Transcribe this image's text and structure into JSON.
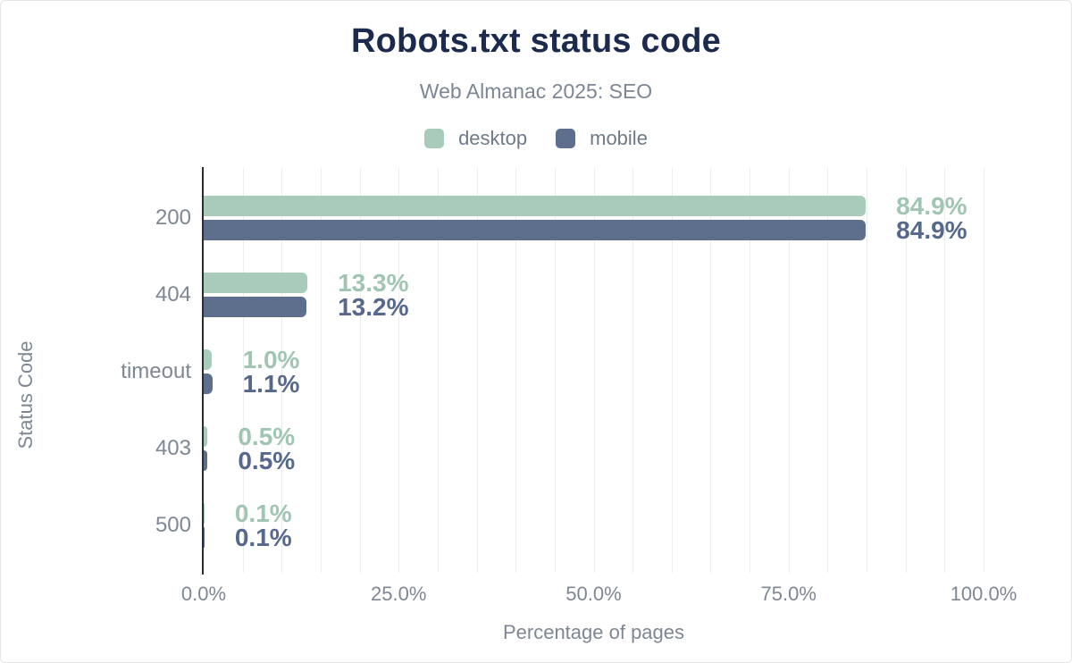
{
  "chart_data": {
    "type": "bar",
    "orientation": "horizontal",
    "title": "Robots.txt status code",
    "subtitle": "Web Almanac 2025: SEO",
    "categories": [
      "200",
      "404",
      "timeout",
      "403",
      "500"
    ],
    "series": [
      {
        "name": "desktop",
        "color": "#a8cbba",
        "label_color": "#a0c6b3",
        "values": [
          84.9,
          13.3,
          1.0,
          0.5,
          0.1
        ]
      },
      {
        "name": "mobile",
        "color": "#5e6f8d",
        "label_color": "#56688c",
        "values": [
          84.9,
          13.2,
          1.1,
          0.5,
          0.1
        ]
      }
    ],
    "value_labels": [
      [
        "84.9%",
        "13.3%",
        "1.0%",
        "0.5%",
        "0.1%"
      ],
      [
        "84.9%",
        "13.2%",
        "1.1%",
        "0.5%",
        "0.1%"
      ]
    ],
    "xlabel": "Percentage of pages",
    "ylabel": "Status Code",
    "xlim": [
      0,
      100
    ],
    "x_ticks": [
      {
        "value": 0,
        "label": "0.0%"
      },
      {
        "value": 25,
        "label": "25.0%"
      },
      {
        "value": 50,
        "label": "50.0%"
      },
      {
        "value": 75,
        "label": "75.0%"
      },
      {
        "value": 100,
        "label": "100.0%"
      }
    ],
    "grid": {
      "show": true,
      "step": 5
    },
    "legend_position": "top",
    "colors": {
      "title": "#1c2b4d",
      "subtitle_text": "#7c8694",
      "axis_text": "#7e8793",
      "gridline": "#ededed",
      "axis_line": "#2b2d31",
      "background": "#ffffff"
    }
  }
}
